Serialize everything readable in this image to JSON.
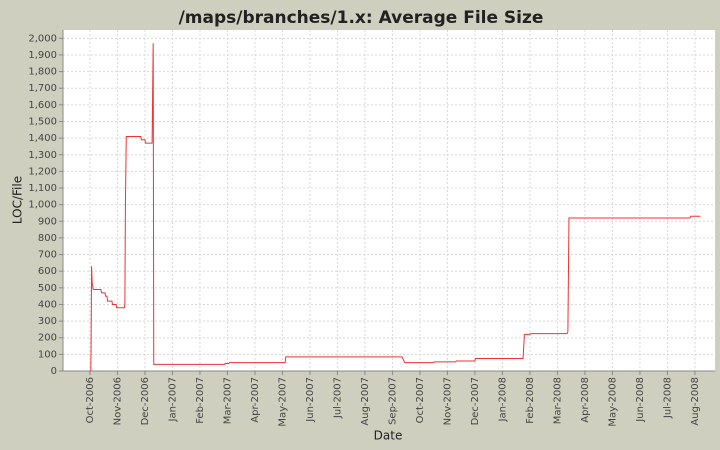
{
  "chart_data": {
    "type": "line",
    "title": "/maps/branches/1.x: Average File Size",
    "x_label": "Date",
    "y_label": "LOC/File",
    "grid": true,
    "xlim": [
      -0.98,
      22.73
    ],
    "ylim": [
      0,
      2050
    ],
    "xticks": [
      {
        "value": 0,
        "label": "Oct-2006"
      },
      {
        "value": 1,
        "label": "Nov-2006"
      },
      {
        "value": 2,
        "label": "Dec-2006"
      },
      {
        "value": 3,
        "label": "Jan-2007"
      },
      {
        "value": 4,
        "label": "Feb-2007"
      },
      {
        "value": 5,
        "label": "Mar-2007"
      },
      {
        "value": 6,
        "label": "Apr-2007"
      },
      {
        "value": 7,
        "label": "May-2007"
      },
      {
        "value": 8,
        "label": "Jun-2007"
      },
      {
        "value": 9,
        "label": "Jul-2007"
      },
      {
        "value": 10,
        "label": "Aug-2007"
      },
      {
        "value": 11,
        "label": "Sep-2007"
      },
      {
        "value": 12,
        "label": "Oct-2007"
      },
      {
        "value": 13,
        "label": "Nov-2007"
      },
      {
        "value": 14,
        "label": "Dec-2007"
      },
      {
        "value": 15,
        "label": "Jan-2008"
      },
      {
        "value": 16,
        "label": "Feb-2008"
      },
      {
        "value": 17,
        "label": "Mar-2008"
      },
      {
        "value": 18,
        "label": "Apr-2008"
      },
      {
        "value": 19,
        "label": "May-2008"
      },
      {
        "value": 20,
        "label": "Jun-2008"
      },
      {
        "value": 21,
        "label": "Jul-2008"
      },
      {
        "value": 22,
        "label": "Aug-2008"
      }
    ],
    "yticks": [
      0,
      100,
      200,
      300,
      400,
      500,
      600,
      700,
      800,
      900,
      {
        "value": 1000,
        "label": "1,000"
      },
      {
        "value": 1100,
        "label": "1,100"
      },
      {
        "value": 1200,
        "label": "1,200"
      },
      {
        "value": 1300,
        "label": "1,300"
      },
      {
        "value": 1400,
        "label": "1,400"
      },
      {
        "value": 1500,
        "label": "1,500"
      },
      {
        "value": 1600,
        "label": "1,600"
      },
      {
        "value": 1700,
        "label": "1,700"
      },
      {
        "value": 1800,
        "label": "1,800"
      },
      {
        "value": 1900,
        "label": "1,900"
      },
      {
        "value": 2000,
        "label": "2,000"
      }
    ],
    "series": [
      {
        "color": "#ee3333",
        "x": [
          0.03,
          0.04,
          0.06,
          0.08,
          0.12,
          0.4,
          0.42,
          0.55,
          0.57,
          0.62,
          0.64,
          0.8,
          0.82,
          0.95,
          0.97,
          1.25,
          1.27,
          1.29,
          1.32,
          1.85,
          1.87,
          2.0,
          2.02,
          2.26,
          2.28,
          2.3,
          2.32,
          4.9,
          4.92,
          5.05,
          5.07,
          7.1,
          7.12,
          11.35,
          11.45,
          12.5,
          12.52,
          13.3,
          13.32,
          14.0,
          14.02,
          15.75,
          15.8,
          16.0,
          16.02,
          17.35,
          17.38,
          17.42,
          21.82,
          21.84,
          22.2
        ],
        "values": [
          0,
          130,
          630,
          530,
          490,
          490,
          470,
          470,
          450,
          450,
          420,
          420,
          400,
          400,
          380,
          380,
          400,
          1000,
          1410,
          1410,
          1390,
          1390,
          1370,
          1370,
          1680,
          1970,
          40,
          40,
          45,
          45,
          50,
          50,
          85,
          85,
          50,
          50,
          55,
          55,
          60,
          60,
          75,
          75,
          220,
          220,
          225,
          225,
          235,
          920,
          920,
          930,
          930
        ]
      }
    ]
  }
}
